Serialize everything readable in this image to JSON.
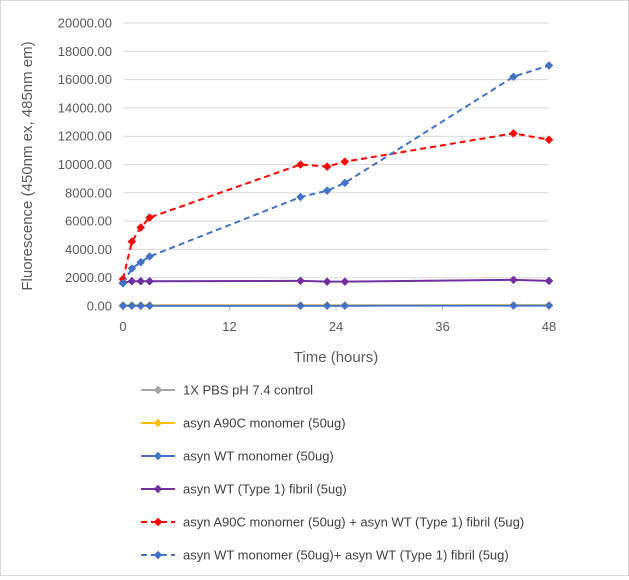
{
  "chart_data": {
    "type": "line",
    "title": "",
    "xlabel": "Time (hours)",
    "ylabel": "Fluorescence (450nm ex, 485nm em)",
    "xlim": [
      0,
      48
    ],
    "ylim": [
      0,
      20000
    ],
    "x_ticks": [
      0,
      12,
      24,
      36,
      48
    ],
    "x_tick_labels": [
      "0",
      "12",
      "24",
      "36",
      "48"
    ],
    "y_ticks": [
      0,
      2000,
      4000,
      6000,
      8000,
      10000,
      12000,
      14000,
      16000,
      18000,
      20000
    ],
    "y_tick_labels": [
      "0.00",
      "2000.00",
      "4000.00",
      "6000.00",
      "8000.00",
      "10000.00",
      "12000.00",
      "14000.00",
      "16000.00",
      "18000.00",
      "20000.00"
    ],
    "grid": "horizontal",
    "legend_position": "bottom",
    "series": [
      {
        "name": "1X PBS pH 7.4 control",
        "color": "#a5a5a5",
        "dash": "solid",
        "x": [
          0,
          1,
          2,
          3,
          20,
          23,
          25,
          44,
          48
        ],
        "y": [
          30,
          30,
          30,
          30,
          30,
          30,
          30,
          40,
          40
        ]
      },
      {
        "name": "asyn A90C monomer (50ug)",
        "color": "#ffc000",
        "dash": "solid",
        "x": [
          0,
          1,
          2,
          3,
          20,
          23,
          25,
          44,
          48
        ],
        "y": [
          40,
          40,
          40,
          40,
          40,
          40,
          40,
          50,
          50
        ]
      },
      {
        "name": "asyn WT monomer (50ug)",
        "color": "#4472c4",
        "dash": "solid",
        "x": [
          0,
          1,
          2,
          3,
          20,
          23,
          25,
          44,
          48
        ],
        "y": [
          20,
          20,
          20,
          20,
          20,
          20,
          20,
          30,
          30
        ]
      },
      {
        "name": "asyn WT (Type 1) fibril (5ug)",
        "color": "#7030a0",
        "dash": "solid",
        "x": [
          0,
          1,
          2,
          3,
          20,
          23,
          25,
          44,
          48
        ],
        "y": [
          1650,
          1750,
          1750,
          1750,
          1780,
          1720,
          1720,
          1850,
          1780
        ]
      },
      {
        "name": "asyn A90C monomer (50ug) + asyn WT (Type 1) fibril (5ug)",
        "color": "#ff0000",
        "dash": "dashed",
        "x": [
          0,
          1,
          2,
          3,
          20,
          23,
          25,
          44,
          48
        ],
        "y": [
          1900,
          4550,
          5550,
          6250,
          10000,
          9850,
          10200,
          12200,
          11750
        ]
      },
      {
        "name": "asyn WT monomer (50ug)+ asyn WT (Type 1) fibril (5ug)",
        "color": "#4472c4",
        "dash": "dashed",
        "x": [
          0,
          1,
          2,
          3,
          20,
          23,
          25,
          44,
          48
        ],
        "y": [
          1600,
          2650,
          3100,
          3500,
          7700,
          8150,
          8700,
          16200,
          17000
        ]
      }
    ]
  }
}
